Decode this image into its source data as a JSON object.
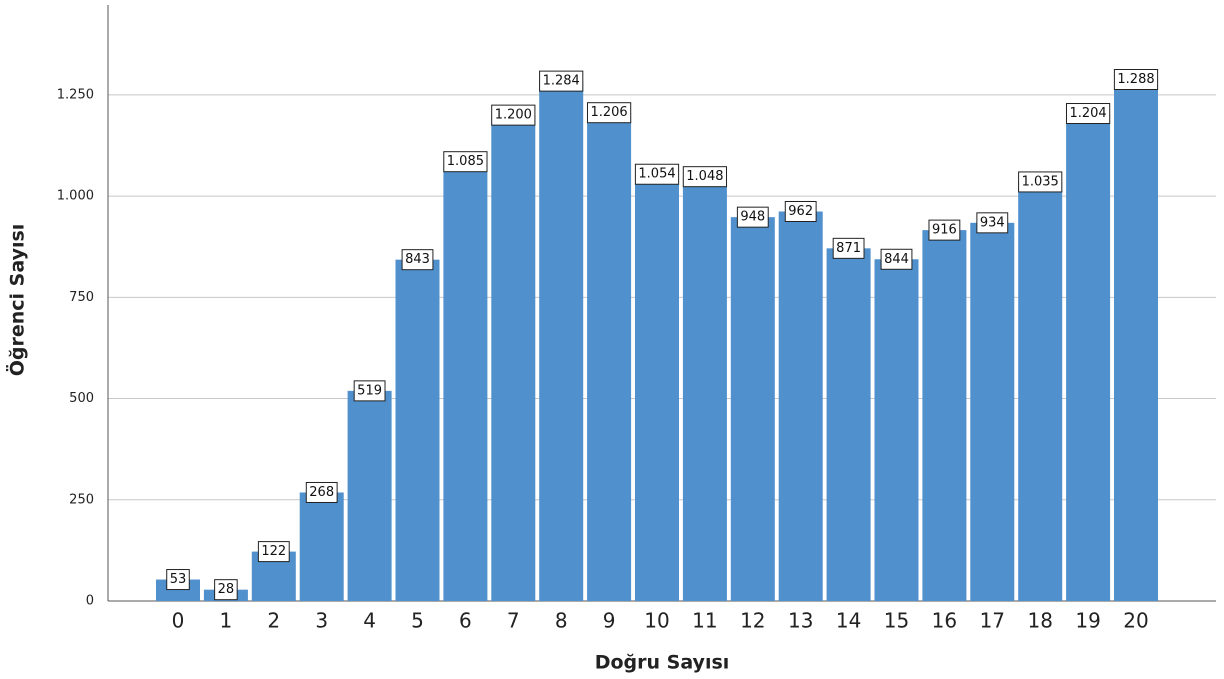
{
  "chart_data": {
    "type": "bar",
    "x_label": "Doğru Sayısı",
    "y_label": "Öğrenci Sayısı",
    "categories": [
      "0",
      "1",
      "2",
      "3",
      "4",
      "5",
      "6",
      "7",
      "8",
      "9",
      "10",
      "11",
      "12",
      "13",
      "14",
      "15",
      "16",
      "17",
      "18",
      "19",
      "20"
    ],
    "values": [
      53,
      28,
      122,
      268,
      519,
      843,
      1085,
      1200,
      1284,
      1206,
      1054,
      1048,
      948,
      962,
      871,
      844,
      916,
      934,
      1035,
      1204,
      1288
    ],
    "value_labels": [
      "53",
      "28",
      "122",
      "268",
      "519",
      "843",
      "1.085",
      "1.200",
      "1.284",
      "1.206",
      "1.054",
      "1.048",
      "948",
      "962",
      "871",
      "844",
      "916",
      "934",
      "1.035",
      "1.204",
      "1.288"
    ],
    "color": "#4f90cd",
    "ylim": [
      0,
      1472
    ],
    "yticks": [
      0,
      250,
      500,
      750,
      {
        "value": 1000,
        "label": "1.000"
      },
      {
        "value": 1250,
        "label": "1.250"
      }
    ],
    "grid": true
  }
}
